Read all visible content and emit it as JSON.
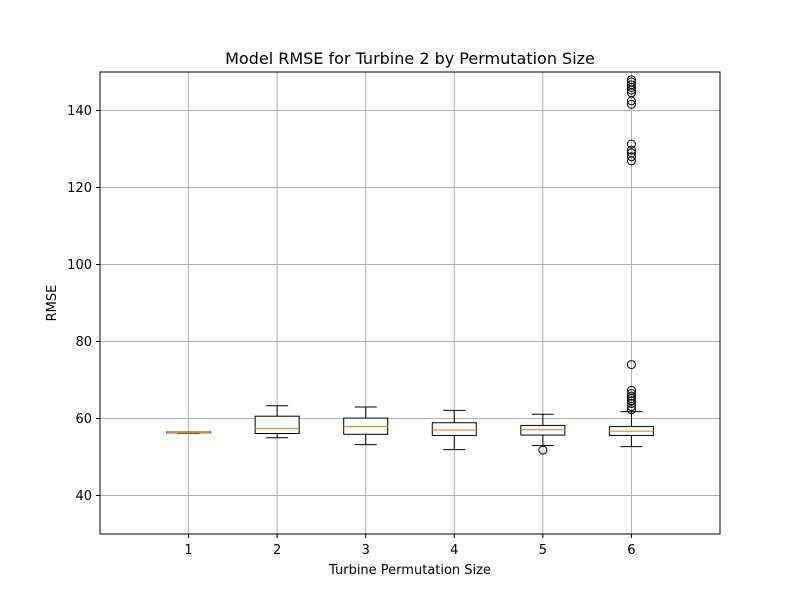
{
  "chart_data": {
    "type": "box",
    "title": "Model RMSE for Turbine 2 by Permutation Size",
    "xlabel": "Turbine Permutation Size",
    "ylabel": "RMSE",
    "categories": [
      "1",
      "2",
      "3",
      "4",
      "5",
      "6"
    ],
    "ylim": [
      30,
      150
    ],
    "yticks": [
      40,
      60,
      80,
      100,
      120,
      140
    ],
    "grid": true,
    "colors": {
      "box": "#000000",
      "median": "#ff7f0e",
      "grid": "#b0b0b0"
    },
    "boxes": [
      {
        "category": "1",
        "whisker_low": 56.2,
        "q1": 56.3,
        "median": 56.4,
        "q3": 56.5,
        "whisker_high": 56.5,
        "outliers": []
      },
      {
        "category": "2",
        "whisker_low": 55.0,
        "q1": 56.1,
        "median": 57.4,
        "q3": 60.6,
        "whisker_high": 63.3,
        "outliers": []
      },
      {
        "category": "3",
        "whisker_low": 53.2,
        "q1": 55.9,
        "median": 57.9,
        "q3": 60.1,
        "whisker_high": 63.0,
        "outliers": []
      },
      {
        "category": "4",
        "whisker_low": 51.9,
        "q1": 55.6,
        "median": 57.0,
        "q3": 58.9,
        "whisker_high": 62.1,
        "outliers": []
      },
      {
        "category": "5",
        "whisker_low": 53.0,
        "q1": 55.7,
        "median": 57.1,
        "q3": 58.2,
        "whisker_high": 61.1,
        "outliers": [
          51.8
        ]
      },
      {
        "category": "6",
        "whisker_low": 52.7,
        "q1": 55.6,
        "median": 56.7,
        "q3": 57.9,
        "whisker_high": 61.8,
        "outliers": [
          62.3,
          63.1,
          63.9,
          64.6,
          65.2,
          65.8,
          66.5,
          67.3,
          74.0,
          126.9,
          128.0,
          129.0,
          129.7,
          131.3,
          141.6,
          142.5,
          144.6,
          145.3,
          146.0,
          146.7,
          147.4,
          148.0
        ]
      }
    ]
  }
}
